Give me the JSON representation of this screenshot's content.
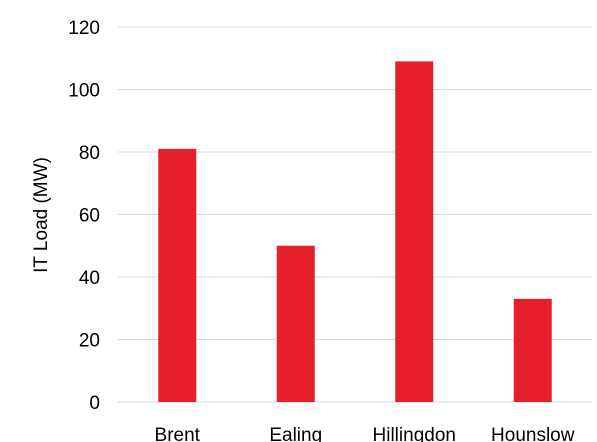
{
  "chart_data": {
    "type": "bar",
    "categories": [
      "Brent",
      "Ealing",
      "Hillingdon",
      "Hounslow"
    ],
    "values": [
      81,
      50,
      109,
      33
    ],
    "title": "",
    "xlabel": "",
    "ylabel": "IT Load (MW)",
    "ylim": [
      0,
      120
    ],
    "yticks": [
      0,
      20,
      40,
      60,
      80,
      100,
      120
    ],
    "grid": true,
    "legend": "none",
    "bar_color": "#e5202b"
  }
}
